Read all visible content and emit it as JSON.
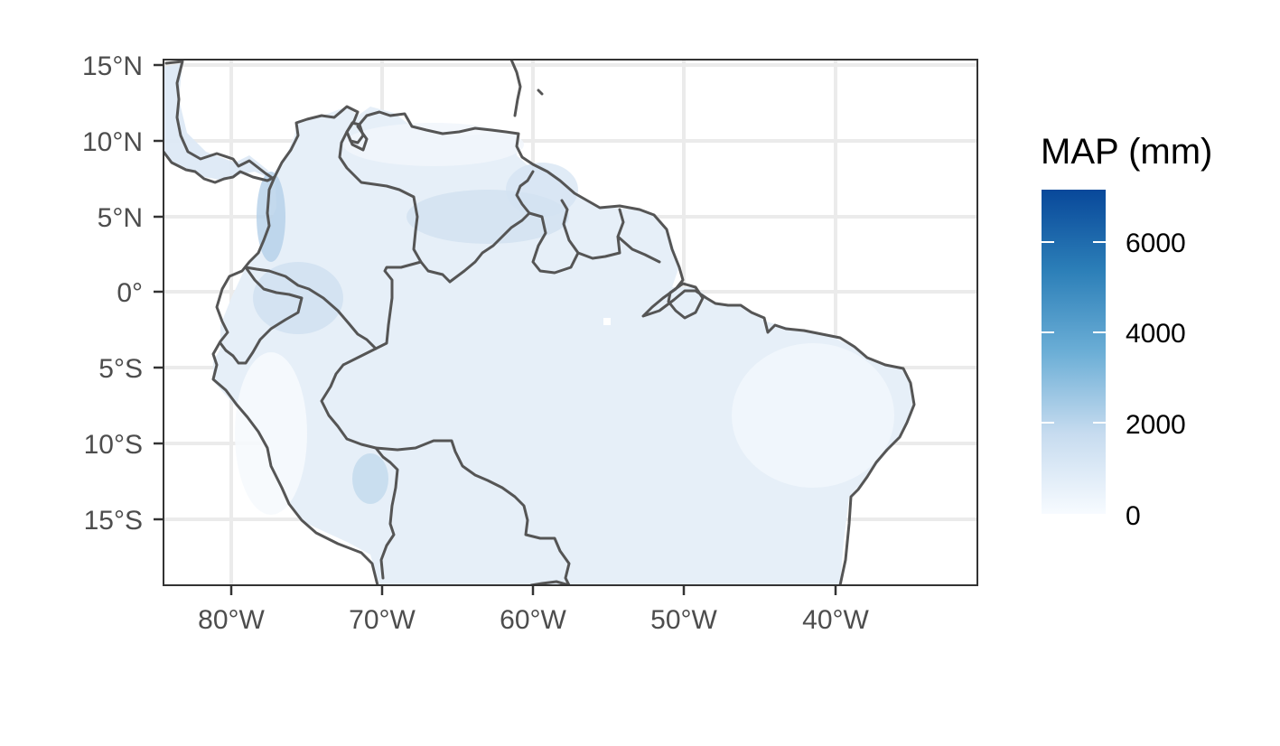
{
  "map": {
    "x_ticks": [
      "80°W",
      "70°W",
      "60°W",
      "50°W",
      "40°W"
    ],
    "y_ticks": [
      "15°N",
      "10°N",
      "5°N",
      "0°",
      "5°S",
      "10°S",
      "15°S"
    ],
    "x_tick_values": [
      -80,
      -70,
      -60,
      -50,
      -40
    ],
    "y_tick_values": [
      15,
      10,
      5,
      0,
      -5,
      -10,
      -15
    ],
    "lon_range": [
      -84.5,
      -30.8
    ],
    "lat_range": [
      -19.5,
      15.3
    ],
    "fill_variable": "mean annual precipitation"
  },
  "legend": {
    "title": "MAP (mm)",
    "labels": [
      "6000",
      "4000",
      "2000",
      "0"
    ],
    "values": [
      6000,
      4000,
      2000,
      0
    ],
    "range": [
      0,
      7100
    ],
    "colors": {
      "low": "#f7fbff",
      "mid": "#9ecae1",
      "high": "#08489a"
    }
  },
  "colors": {
    "background": "#ffffff",
    "grid": "#ebebeb",
    "outline": "#555555",
    "land_fill": "#e6eff8"
  }
}
